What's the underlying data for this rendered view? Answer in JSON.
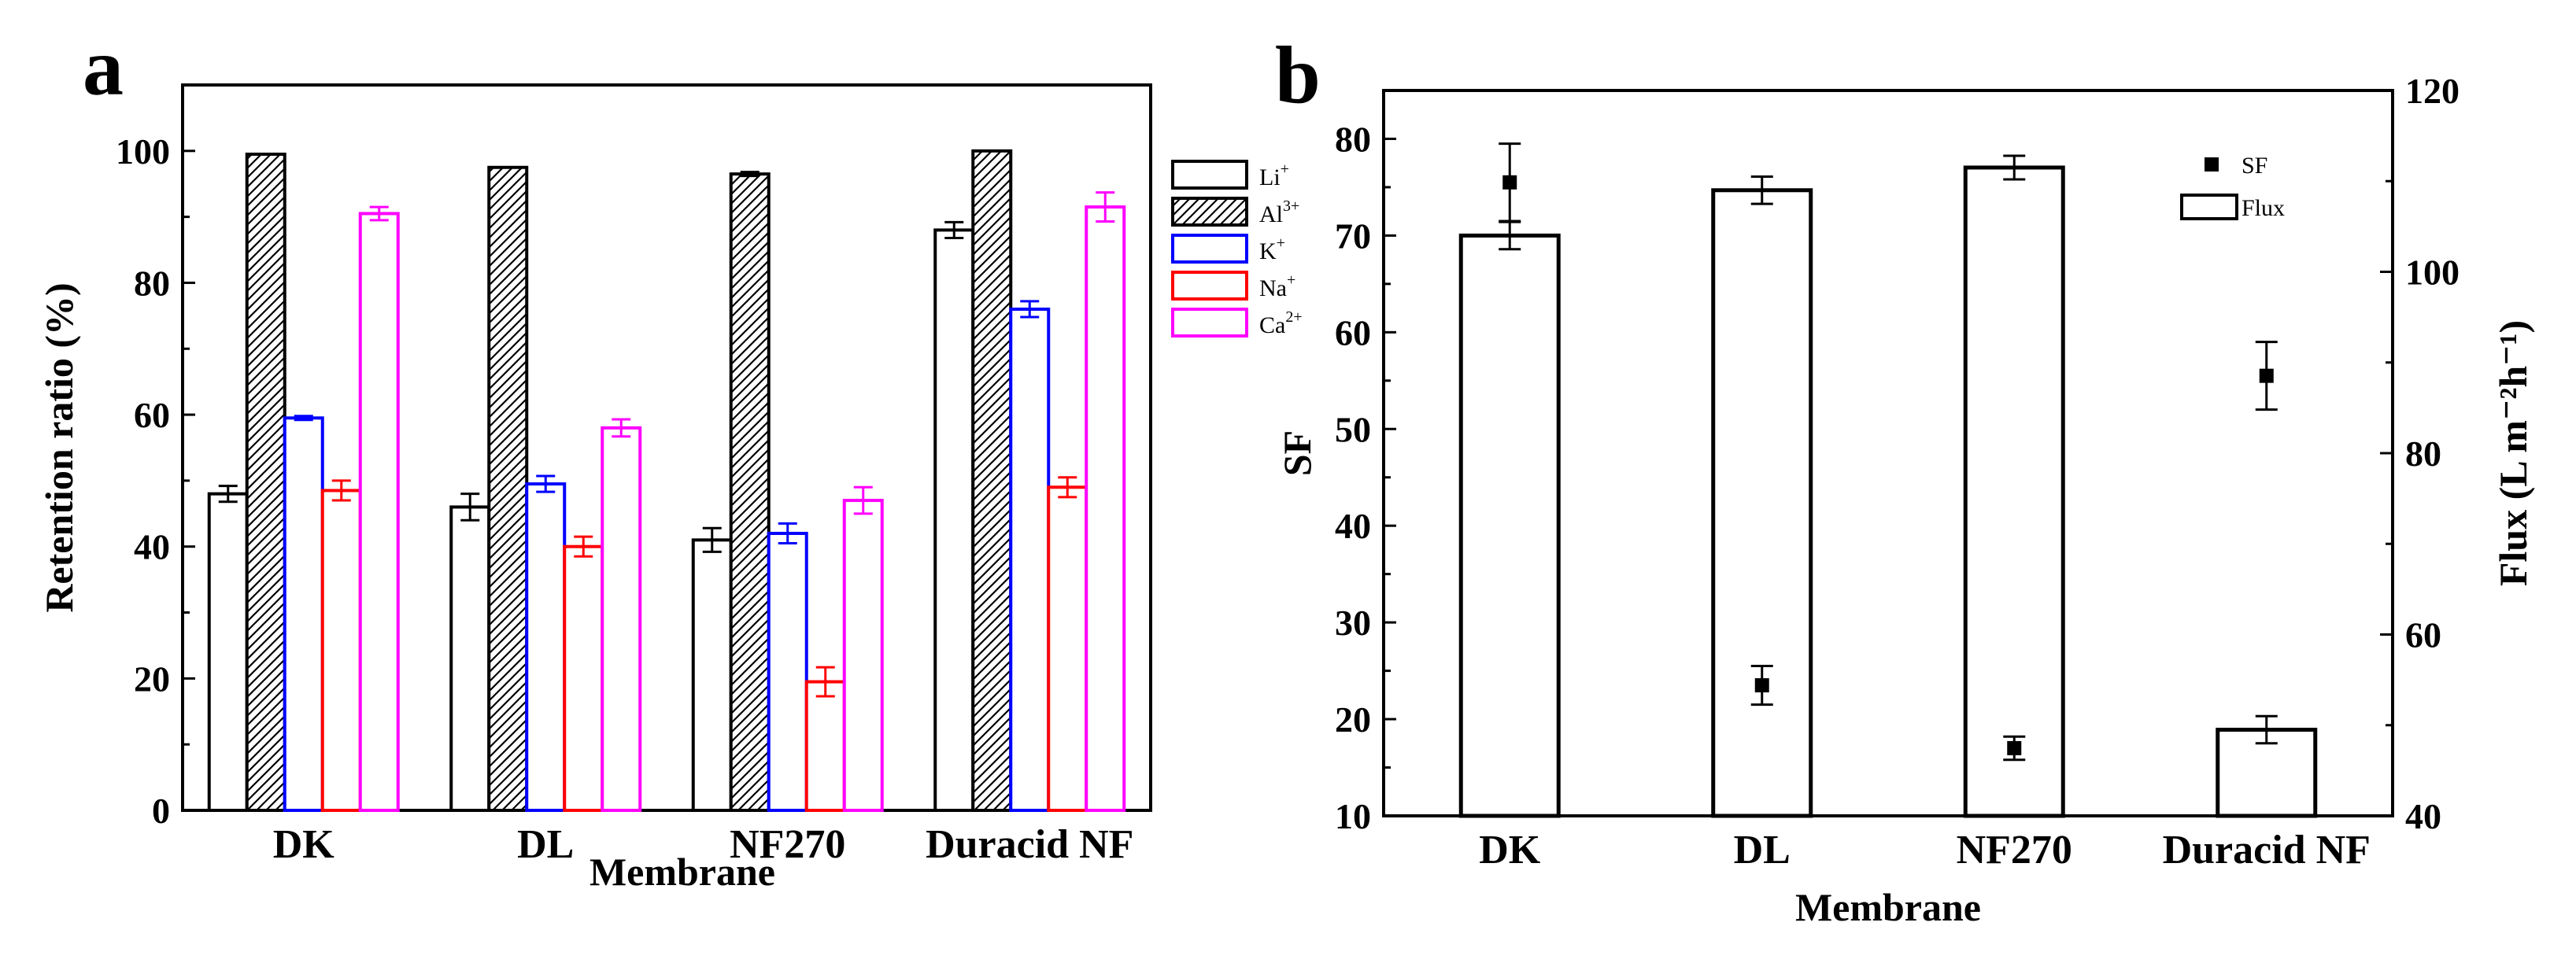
{
  "chart_data": [
    {
      "panel": "a",
      "type": "bar",
      "xlabel": "Membrane",
      "ylabel": "Retention ratio (%)",
      "ylim": [
        0,
        110
      ],
      "yticks": [
        0,
        20,
        40,
        60,
        80,
        100
      ],
      "categories": [
        "DK",
        "DL",
        "NF270",
        "Duracid NF"
      ],
      "legend_position": "right",
      "series": [
        {
          "name": "Li",
          "sup": "+",
          "color": "#000000",
          "pattern": "none",
          "values": [
            48,
            46,
            41,
            88
          ],
          "errors": [
            1.2,
            2,
            1.8,
            1.2
          ]
        },
        {
          "name": "Al",
          "sup": "3+",
          "color": "#000000",
          "pattern": "hatch",
          "values": [
            99.5,
            97.5,
            96.5,
            100
          ],
          "errors": [
            0,
            0,
            0.3,
            0
          ]
        },
        {
          "name": "K",
          "sup": "+",
          "color": "#0000ff",
          "pattern": "none",
          "values": [
            59.5,
            49.5,
            42,
            76
          ],
          "errors": [
            0.3,
            1.2,
            1.5,
            1.2
          ]
        },
        {
          "name": "Na",
          "sup": "+",
          "color": "#ff0000",
          "pattern": "none",
          "values": [
            48.5,
            40,
            19.5,
            49
          ],
          "errors": [
            1.5,
            1.5,
            2.2,
            1.5
          ]
        },
        {
          "name": "Ca",
          "sup": "2+",
          "color": "#ff00ff",
          "pattern": "none",
          "values": [
            90.5,
            58,
            47,
            91.5
          ],
          "errors": [
            1,
            1.3,
            2,
            2.2
          ]
        }
      ]
    },
    {
      "panel": "b",
      "type": "bar",
      "xlabel": "Membrane",
      "ylabel": "SF",
      "y2label": "Flux (L m⁻²h⁻¹)",
      "ylim": [
        10,
        85
      ],
      "yticks": [
        10,
        20,
        30,
        40,
        50,
        60,
        70,
        80
      ],
      "y2lim": [
        40,
        120
      ],
      "y2ticks": [
        40,
        60,
        80,
        100,
        120
      ],
      "categories": [
        "DK",
        "DL",
        "NF270",
        "Duracid NF"
      ],
      "legend_position": "top-right",
      "series": [
        {
          "name": "SF",
          "kind": "scatter",
          "axis": "left",
          "color": "#000000",
          "values": [
            75.5,
            23.5,
            17,
            55.5
          ],
          "errors": [
            4,
            2,
            1.2,
            3.5
          ]
        },
        {
          "name": "Flux",
          "kind": "bar",
          "axis": "right",
          "color": "#000000",
          "values": [
            104,
            109,
            111.5,
            49.5
          ],
          "errors": [
            1.5,
            1.5,
            1.3,
            1.5
          ]
        }
      ]
    }
  ]
}
